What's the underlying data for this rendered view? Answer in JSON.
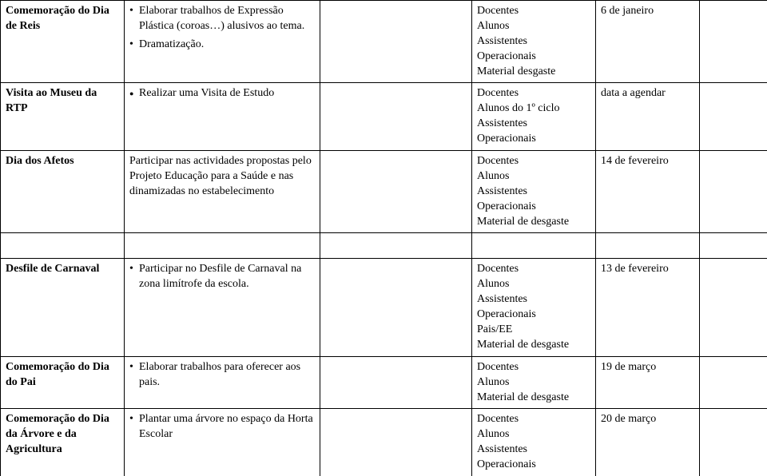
{
  "rows": [
    {
      "title": "Comemoração do Dia de Reis",
      "activities": [
        {
          "text": "Elaborar trabalhos de Expressão Plástica (coroas…) alusivos ao tema.",
          "marker": "dot"
        },
        {
          "text": "Dramatização.",
          "marker": "dot"
        }
      ],
      "recipients": "Docentes\nAlunos\nAssistentes\nOperacionais\nMaterial desgaste",
      "date": "6 de janeiro"
    },
    {
      "title": "Visita ao Museu da RTP",
      "activities": [
        {
          "text": "Realizar uma Visita de Estudo",
          "marker": "solid"
        }
      ],
      "recipients": "Docentes\nAlunos do 1º ciclo\nAssistentes\nOperacionais",
      "date": "data a agendar"
    },
    {
      "title": "Dia dos Afetos",
      "activities": [
        {
          "text": "Participar nas actividades propostas pelo Projeto Educação para a Saúde e nas dinamizadas no estabelecimento",
          "marker": "none"
        }
      ],
      "recipients": "Docentes\nAlunos\nAssistentes\nOperacionais\nMaterial de desgaste",
      "date": "14 de fevereiro"
    },
    {
      "title": "Desfile de Carnaval",
      "activities": [
        {
          "text": "Participar no Desfile de Carnaval na zona limítrofe da escola.",
          "marker": "dot"
        }
      ],
      "recipients": "Docentes\nAlunos\nAssistentes\nOperacionais\nPais/EE\nMaterial de desgaste",
      "date": "13 de fevereiro"
    },
    {
      "title": "Comemoração do Dia do Pai",
      "activities": [
        {
          "text": "Elaborar trabalhos para oferecer aos pais.",
          "marker": "dot"
        }
      ],
      "recipients": "Docentes\nAlunos\nMaterial de desgaste",
      "date": "19 de março"
    },
    {
      "title": "Comemoração do Dia da Árvore e da Agricultura",
      "activities": [
        {
          "text": "Plantar uma árvore no espaço da Horta Escolar",
          "marker": "dot"
        }
      ],
      "recipients": "Docentes\nAlunos\nAssistentes\nOperacionais",
      "date": "20 de março"
    }
  ]
}
